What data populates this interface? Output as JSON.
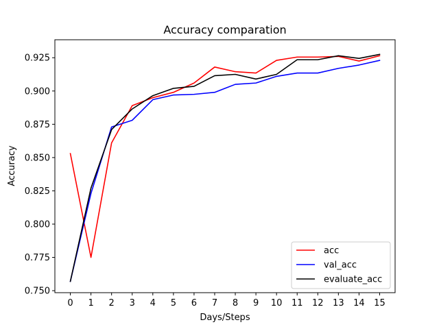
{
  "chart_data": {
    "type": "line",
    "title": "Accuracy comparation",
    "xlabel": "Days/Steps",
    "ylabel": "Accuracy",
    "x": [
      0,
      1,
      2,
      3,
      4,
      5,
      6,
      7,
      8,
      9,
      10,
      11,
      12,
      13,
      14,
      15
    ],
    "xticks": [
      "0",
      "1",
      "2",
      "3",
      "4",
      "5",
      "6",
      "7",
      "8",
      "9",
      "10",
      "11",
      "12",
      "13",
      "14",
      "15"
    ],
    "yticks": [
      "0.750",
      "0.775",
      "0.800",
      "0.825",
      "0.850",
      "0.875",
      "0.900",
      "0.925"
    ],
    "ytick_values": [
      0.75,
      0.775,
      0.8,
      0.825,
      0.85,
      0.875,
      0.9,
      0.925
    ],
    "xlim": [
      -0.75,
      15.75
    ],
    "ylim": [
      0.7485,
      0.9385
    ],
    "grid": false,
    "legend_position": "lower-right",
    "series": [
      {
        "name": "acc",
        "color": "#ff0000",
        "values": [
          0.853,
          0.775,
          0.861,
          0.889,
          0.895,
          0.899,
          0.906,
          0.918,
          0.9145,
          0.9135,
          0.923,
          0.9255,
          0.9255,
          0.926,
          0.9225,
          0.9265
        ]
      },
      {
        "name": "val_acc",
        "color": "#0000ff",
        "values": [
          0.757,
          0.823,
          0.873,
          0.878,
          0.8935,
          0.897,
          0.8975,
          0.899,
          0.905,
          0.906,
          0.911,
          0.9135,
          0.9135,
          0.917,
          0.9195,
          0.923
        ]
      },
      {
        "name": "evaluate_acc",
        "color": "#000000",
        "values": [
          0.757,
          0.827,
          0.871,
          0.8865,
          0.8965,
          0.902,
          0.9035,
          0.9115,
          0.9125,
          0.909,
          0.9125,
          0.9235,
          0.9235,
          0.9265,
          0.9245,
          0.9275
        ]
      }
    ]
  }
}
